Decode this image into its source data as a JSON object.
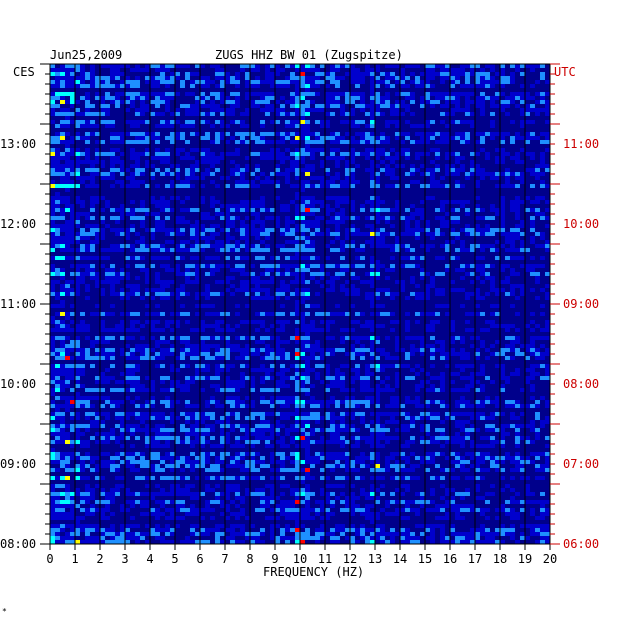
{
  "chart_data": {
    "type": "heatmap",
    "title": "ZUGS HHZ BW 01 (Zugspitze)",
    "date": "Jun25,2009",
    "xlabel": "FREQUENCY (HZ)",
    "xlim": [
      0,
      20
    ],
    "x_ticks": [
      "0",
      "1",
      "2",
      "3",
      "4",
      "5",
      "6",
      "7",
      "8",
      "9",
      "10",
      "11",
      "12",
      "13",
      "14",
      "15",
      "16",
      "17",
      "18",
      "19",
      "20"
    ],
    "left_axis_label": "CES",
    "right_axis_label": "UTC",
    "left_ticks": [
      "13:00",
      "12:00",
      "11:00",
      "10:00",
      "09:00",
      "08:00"
    ],
    "right_ticks": [
      "11:00",
      "10:00",
      "09:00",
      "08:00",
      "07:00",
      "06:00"
    ],
    "time_range_utc": [
      "06:00",
      "12:00"
    ],
    "colors": {
      "background_band": "#00008b",
      "low": "#0000cd",
      "mid": "#1e90ff",
      "high": "#00ffff",
      "peak": "#ffff00",
      "extreme": "#ff0000",
      "grid": "#000000",
      "right_axis": "#cc0000"
    }
  },
  "footer_mark": "*"
}
